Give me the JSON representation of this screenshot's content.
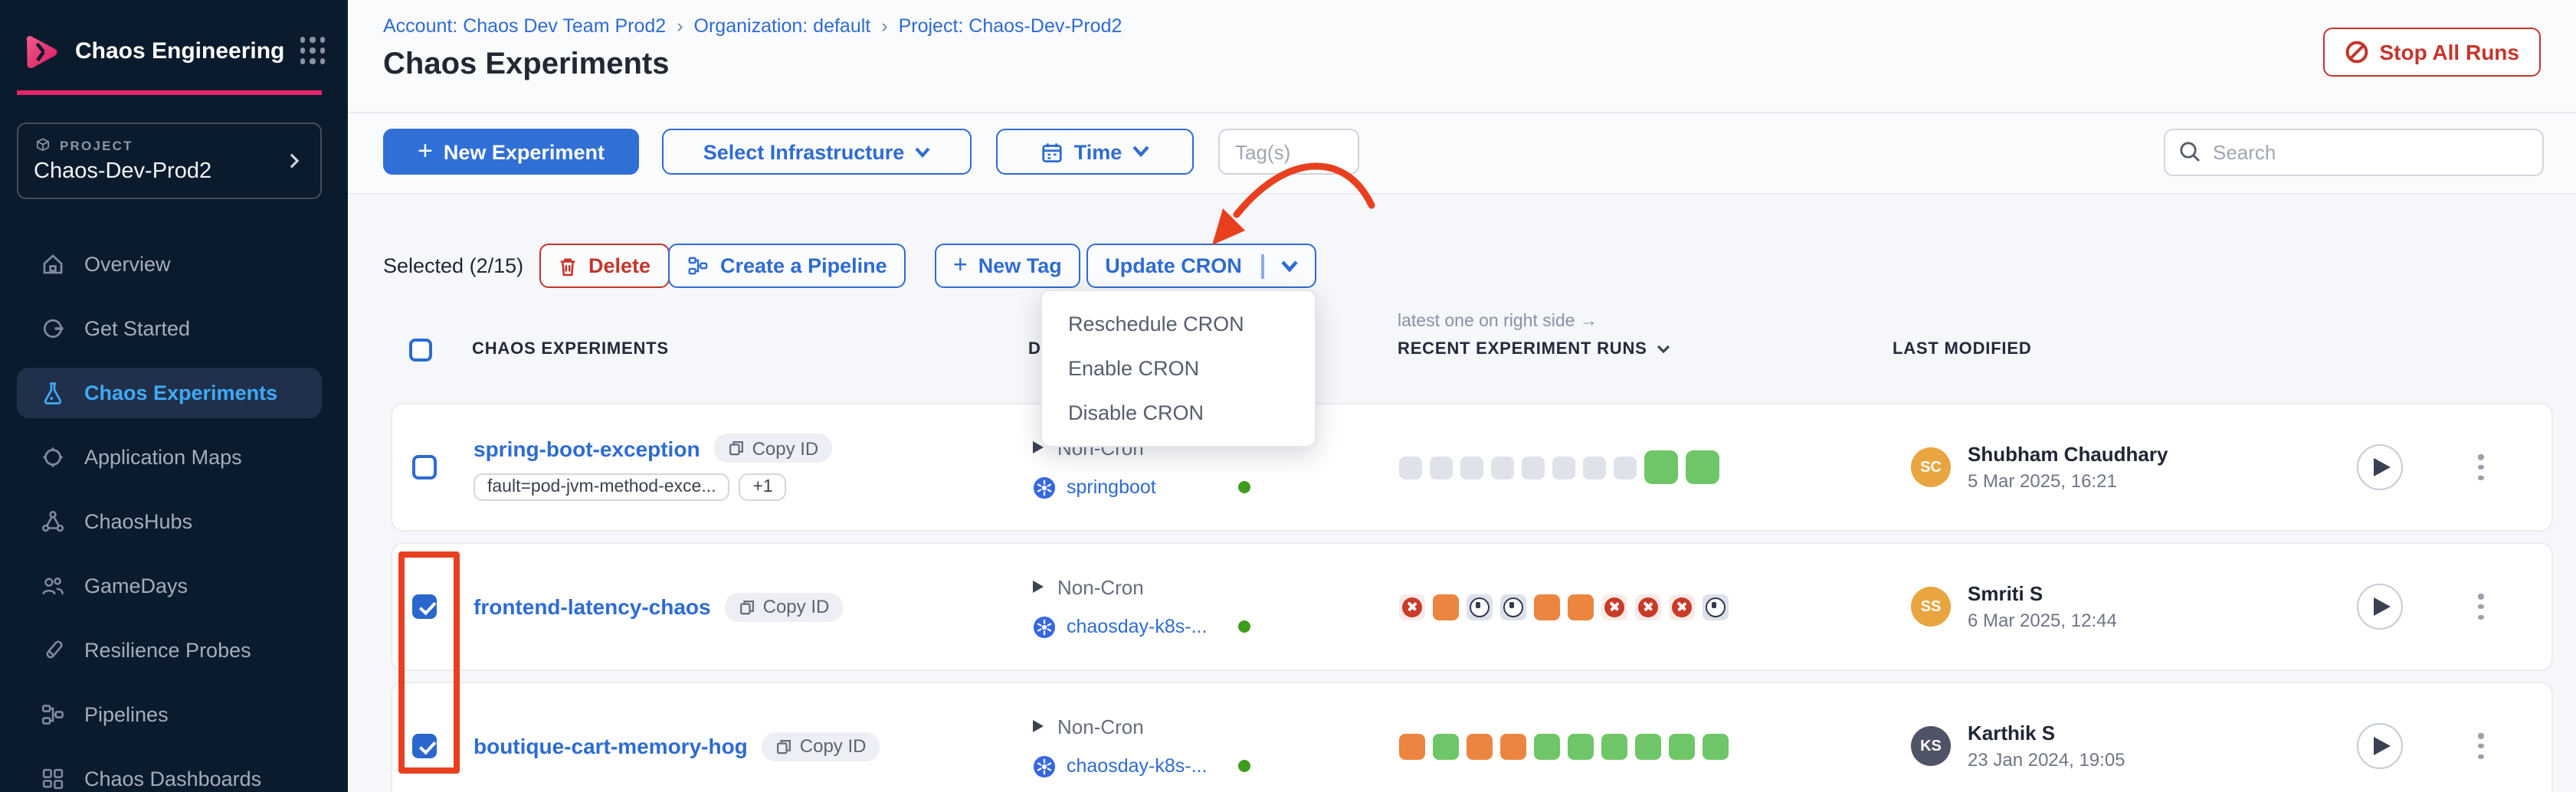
{
  "colors": {
    "accent_blue": "#2e6bd2",
    "brand_pink": "#e5246d",
    "danger_red": "#c5352b",
    "annotation_red": "#e8401f",
    "active_nav_blue": "#3fa9f5",
    "run_green": "#6fc668",
    "run_orange": "#ec8540",
    "run_fail_red": "#c93a28"
  },
  "icons": [
    "chaos-logo",
    "grid-menu-icon",
    "cube-icon",
    "chevron-right-icon",
    "home-icon",
    "get-started-icon",
    "flask-icon",
    "target-icon",
    "network-icon",
    "people-icon",
    "probe-icon",
    "pipeline-icon",
    "dashboard-icon",
    "stop-icon",
    "plus-icon",
    "calendar-icon",
    "chevron-down-icon",
    "search-icon",
    "trash-icon",
    "copy-icon",
    "kubernetes-icon",
    "play-icon",
    "kebab-menu-icon"
  ],
  "sidebar": {
    "app_title": "Chaos Engineering",
    "project_label": "PROJECT",
    "project_name": "Chaos-Dev-Prod2",
    "active_item": "Chaos Experiments",
    "items": [
      {
        "label": "Overview"
      },
      {
        "label": "Get Started"
      },
      {
        "label": "Chaos Experiments"
      },
      {
        "label": "Application Maps"
      },
      {
        "label": "ChaosHubs"
      },
      {
        "label": "GameDays"
      },
      {
        "label": "Resilience Probes"
      },
      {
        "label": "Pipelines"
      },
      {
        "label": "Chaos Dashboards"
      }
    ]
  },
  "header": {
    "breadcrumb": [
      "Account: Chaos Dev Team Prod2",
      "Organization: default",
      "Project: Chaos-Dev-Prod2"
    ],
    "breadcrumb_separator": "›",
    "page_title": "Chaos Experiments",
    "stop_all_runs_label": "Stop All Runs"
  },
  "toolbar": {
    "new_experiment_label": "New Experiment",
    "select_infrastructure_label": "Select Infrastructure",
    "time_label": "Time",
    "tags_placeholder": "Tag(s)",
    "search_placeholder": "Search"
  },
  "selection_bar": {
    "selected_label": "Selected (2/15)",
    "delete_label": "Delete",
    "create_pipeline_label": "Create a Pipeline",
    "new_tag_label": "New Tag",
    "update_cron_label": "Update CRON"
  },
  "cron_menu": {
    "items": [
      "Reschedule CRON",
      "Enable CRON",
      "Disable CRON"
    ]
  },
  "table": {
    "col_experiments": "CHAOS EXPERIMENTS",
    "col_details_partial": "D",
    "runs_note": "latest one on right side →",
    "col_recent_runs": "RECENT EXPERIMENT RUNS",
    "col_last_modified": "LAST MODIFIED",
    "rows": [
      {
        "name": "spring-boot-exception",
        "copy_id": "Copy ID",
        "tag": "fault=pod-jvm-method-exce...",
        "tag_more": "+1",
        "schedule": "Non-Cron",
        "infrastructure": "springboot",
        "checked": false,
        "runs": [
          "gray",
          "gray",
          "gray",
          "gray",
          "gray",
          "gray",
          "gray",
          "gray",
          "green-lg",
          "green-lg"
        ],
        "modified_initials": "SC",
        "modified_by": "Shubham Chaudhary",
        "modified_date": "5 Mar 2025, 16:21",
        "avatar_color": "#e9a53f"
      },
      {
        "name": "frontend-latency-chaos",
        "copy_id": "Copy ID",
        "schedule": "Non-Cron",
        "infrastructure": "chaosday-k8s-...",
        "checked": true,
        "runs": [
          "fail",
          "orange",
          "stop",
          "stop",
          "orange",
          "orange",
          "fail",
          "fail",
          "fail",
          "stop"
        ],
        "modified_initials": "SS",
        "modified_by": "Smriti S",
        "modified_date": "6 Mar 2025, 12:44",
        "avatar_color": "#e9a53f"
      },
      {
        "name": "boutique-cart-memory-hog",
        "copy_id": "Copy ID",
        "schedule": "Non-Cron",
        "infrastructure": "chaosday-k8s-...",
        "checked": true,
        "runs": [
          "orange",
          "green",
          "orange",
          "orange",
          "green",
          "green",
          "green",
          "green",
          "green",
          "green"
        ],
        "modified_initials": "KS",
        "modified_by": "Karthik S",
        "modified_date": "23 Jan 2024, 19:05",
        "avatar_color": "#4e5365"
      }
    ]
  }
}
